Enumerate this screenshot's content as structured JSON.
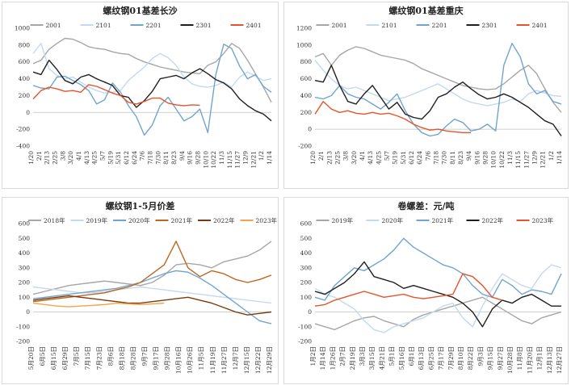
{
  "chart_data": [
    {
      "type": "line",
      "title": "螺纹钢01基差长沙",
      "ylim": [
        -400,
        1000
      ],
      "yticks": [
        "1000",
        "800",
        "600",
        "400",
        "200",
        "0",
        "-200",
        "-400"
      ],
      "xticks": [
        "1/20",
        "2/1",
        "2/13",
        "2/25",
        "3/8",
        "3/20",
        "4/1",
        "4/13",
        "4/25",
        "5/7",
        "5/19",
        "5/31",
        "6/12",
        "6/24",
        "7/6",
        "7/18",
        "7/30",
        "8/11",
        "8/23",
        "9/4",
        "9/16",
        "9/28",
        "10/10",
        "10/22",
        "11/3",
        "11/15",
        "11/27",
        "12/9",
        "12/21",
        "1/2",
        "1/14"
      ],
      "legend_position": "top",
      "series": [
        {
          "name": "2001",
          "color": "#a6a6a6",
          "values": [
            580,
            620,
            750,
            820,
            880,
            870,
            830,
            780,
            760,
            750,
            720,
            700,
            690,
            640,
            600,
            570,
            540,
            520,
            500,
            480,
            470,
            460,
            560,
            600,
            700,
            820,
            760,
            620,
            460,
            300,
            120
          ]
        },
        {
          "name": "2101",
          "color": "#c5d9ee",
          "values": [
            700,
            820,
            520,
            440,
            400,
            420,
            360,
            300,
            260,
            230,
            240,
            260,
            380,
            460,
            540,
            640,
            700,
            650,
            560,
            420,
            340,
            310,
            300,
            320,
            360,
            300,
            420,
            480,
            430,
            380,
            400
          ]
        },
        {
          "name": "2201",
          "color": "#6fa5cf",
          "values": [
            320,
            290,
            280,
            420,
            430,
            380,
            330,
            260,
            100,
            150,
            350,
            240,
            80,
            -50,
            -270,
            -150,
            80,
            180,
            40,
            -100,
            -50,
            40,
            -240,
            450,
            810,
            760,
            550,
            400,
            450,
            310,
            240
          ]
        },
        {
          "name": "2301",
          "color": "#1f1f1f",
          "values": [
            480,
            450,
            620,
            510,
            380,
            340,
            420,
            450,
            400,
            360,
            320,
            200,
            180,
            60,
            140,
            250,
            400,
            420,
            440,
            400,
            470,
            520,
            460,
            390,
            350,
            280,
            160,
            80,
            20,
            -20,
            -100
          ]
        },
        {
          "name": "2401",
          "color": "#e8532a",
          "values": [
            160,
            260,
            300,
            280,
            250,
            260,
            240,
            330,
            310,
            270,
            230,
            200,
            120,
            100,
            130,
            170,
            170,
            110,
            90,
            80,
            90,
            85
          ]
        }
      ]
    },
    {
      "type": "line",
      "title": "螺纹钢01基差重庆",
      "ylim": [
        -200,
        1200
      ],
      "yticks": [
        "1200",
        "1000",
        "800",
        "600",
        "400",
        "200",
        "0",
        "-200"
      ],
      "xticks": [
        "1/20",
        "2/1",
        "2/13",
        "2/25",
        "3/8",
        "3/20",
        "4/1",
        "4/13",
        "4/25",
        "5/7",
        "5/19",
        "5/31",
        "6/12",
        "6/24",
        "7/6",
        "7/18",
        "7/30",
        "8/11",
        "8/23",
        "9/4",
        "9/16",
        "9/28",
        "10/10",
        "10/22",
        "11/3",
        "11/15",
        "11/27",
        "12/9",
        "12/21",
        "1/2",
        "1/14"
      ],
      "legend_position": "top",
      "series": [
        {
          "name": "2001",
          "color": "#a6a6a6",
          "values": [
            860,
            900,
            760,
            880,
            940,
            980,
            960,
            920,
            880,
            860,
            840,
            820,
            780,
            720,
            680,
            640,
            600,
            560,
            520,
            500,
            480,
            470,
            480,
            540,
            620,
            700,
            760,
            660,
            480,
            320,
            200
          ]
        },
        {
          "name": "2101",
          "color": "#c5d9ee",
          "values": [
            820,
            700,
            600,
            520,
            480,
            500,
            460,
            420,
            380,
            340,
            360,
            380,
            420,
            460,
            500,
            540,
            480,
            420,
            360,
            320,
            300,
            280,
            300,
            320,
            360,
            330,
            420,
            460,
            430,
            400,
            390
          ]
        },
        {
          "name": "2201",
          "color": "#6fa5cf",
          "values": [
            380,
            360,
            400,
            520,
            420,
            380,
            360,
            300,
            240,
            320,
            420,
            220,
            60,
            -40,
            -80,
            -60,
            40,
            120,
            80,
            -20,
            0,
            60,
            -20,
            760,
            1020,
            860,
            540,
            420,
            460,
            330,
            300
          ]
        },
        {
          "name": "2301",
          "color": "#1f1f1f",
          "values": [
            580,
            560,
            760,
            520,
            330,
            300,
            420,
            520,
            380,
            240,
            320,
            180,
            140,
            120,
            220,
            380,
            420,
            500,
            560,
            480,
            410,
            360,
            380,
            420,
            380,
            320,
            260,
            180,
            100,
            60,
            -80
          ]
        },
        {
          "name": "2401",
          "color": "#e8532a",
          "values": [
            180,
            330,
            240,
            200,
            220,
            190,
            180,
            200,
            180,
            190,
            160,
            120,
            60,
            20,
            -10,
            0,
            -20,
            -30,
            -40,
            -40
          ]
        }
      ]
    },
    {
      "type": "line",
      "title": "螺纹钢1-5月价差",
      "ylim": [
        -200,
        600
      ],
      "yticks": [
        "600",
        "500",
        "400",
        "300",
        "200",
        "100",
        "0",
        "-100",
        "-200"
      ],
      "xticks": [
        "5月20日",
        "6月5日",
        "6月15日",
        "6月29日",
        "7月5日",
        "7月15日",
        "7月23日",
        "8月6日",
        "8月18日",
        "8月28日",
        "9月7日",
        "9月17日",
        "9月28日",
        "10月16日",
        "10月26日",
        "11月5日",
        "11月19日",
        "11月27日",
        "12月7日",
        "12月15日",
        "12月22日",
        "12月29日"
      ],
      "legend_position": "top",
      "series": [
        {
          "name": "2018年",
          "color": "#a6a6a6",
          "values": [
            120,
            140,
            160,
            180,
            190,
            200,
            210,
            200,
            190,
            180,
            200,
            250,
            320,
            330,
            320,
            300,
            340,
            360,
            380,
            420,
            480
          ]
        },
        {
          "name": "2019年",
          "color": "#c5d9ee",
          "values": [
            170,
            160,
            150,
            140,
            130,
            130,
            140,
            150,
            160,
            170,
            160,
            150,
            140,
            130,
            120,
            110,
            100,
            90,
            80,
            70,
            60
          ]
        },
        {
          "name": "2020年",
          "color": "#6fa5cf",
          "values": [
            90,
            100,
            110,
            120,
            130,
            140,
            150,
            160,
            180,
            200,
            230,
            260,
            280,
            270,
            230,
            180,
            120,
            60,
            0,
            -60,
            -80
          ]
        },
        {
          "name": "2021年",
          "color": "#c0651e",
          "values": [
            70,
            80,
            90,
            100,
            110,
            120,
            130,
            150,
            170,
            200,
            260,
            320,
            480,
            300,
            240,
            280,
            260,
            220,
            200,
            220,
            250
          ]
        },
        {
          "name": "2022年",
          "color": "#7a3b0c",
          "values": [
            80,
            90,
            100,
            110,
            100,
            90,
            80,
            70,
            60,
            60,
            70,
            80,
            90,
            100,
            80,
            60,
            30,
            0,
            -20,
            -10,
            0
          ]
        },
        {
          "name": "2023年",
          "color": "#f4a34a",
          "values": [
            60,
            50,
            40,
            35,
            40,
            45,
            50,
            60,
            55,
            50,
            55,
            60
          ]
        }
      ]
    },
    {
      "type": "line",
      "title": "卷螺差：元/吨",
      "ylim": [
        -200,
        600
      ],
      "yticks": [
        "600",
        "500",
        "400",
        "300",
        "200",
        "100",
        "0",
        "-100",
        "-200"
      ],
      "xticks": [
        "1月2日",
        "1月14日",
        "1月26日",
        "2月7日",
        "2月19日",
        "3月3日",
        "3月15日",
        "4月21日",
        "5月1日",
        "5月16日",
        "6月1日",
        "6月13日",
        "6月25日",
        "7月17日",
        "7月29日",
        "8月10日",
        "8月22日",
        "9月3日",
        "9月15日",
        "9月27日",
        "10月28日",
        "11月8日",
        "11月20日",
        "12月1日",
        "12月13日",
        "12月27日"
      ],
      "legend_position": "top",
      "series": [
        {
          "name": "2019年",
          "color": "#a6a6a6",
          "values": [
            -80,
            -100,
            -120,
            -90,
            -60,
            -40,
            -30,
            -60,
            -80,
            -100,
            -50,
            -20,
            0,
            20,
            40,
            60,
            80,
            100,
            60,
            20,
            -20,
            -60,
            -80,
            -40,
            -20,
            0
          ]
        },
        {
          "name": "2020年",
          "color": "#c5d9ee",
          "values": [
            160,
            120,
            100,
            60,
            20,
            -60,
            -120,
            -140,
            -100,
            -80,
            -60,
            -40,
            0,
            40,
            60,
            -40,
            -100,
            40,
            160,
            260,
            220,
            180,
            160,
            260,
            320,
            300
          ]
        },
        {
          "name": "2021年",
          "color": "#6fa5cf",
          "values": [
            100,
            80,
            180,
            240,
            300,
            280,
            320,
            360,
            420,
            500,
            440,
            400,
            360,
            320,
            300,
            260,
            180,
            120,
            100,
            220,
            180,
            120,
            150,
            140,
            120,
            260
          ]
        },
        {
          "name": "2022年",
          "color": "#1f1f1f",
          "values": [
            140,
            120,
            160,
            200,
            260,
            340,
            240,
            220,
            200,
            160,
            180,
            160,
            140,
            120,
            100,
            60,
            0,
            -100,
            20,
            80,
            60,
            100,
            120,
            80,
            40,
            40
          ]
        },
        {
          "name": "2023年",
          "color": "#e8532a",
          "values": [
            40,
            50,
            80,
            100,
            120,
            140,
            120,
            100,
            110,
            120,
            100,
            90,
            100,
            110,
            120,
            260,
            240,
            180,
            100,
            80
          ]
        }
      ]
    }
  ]
}
